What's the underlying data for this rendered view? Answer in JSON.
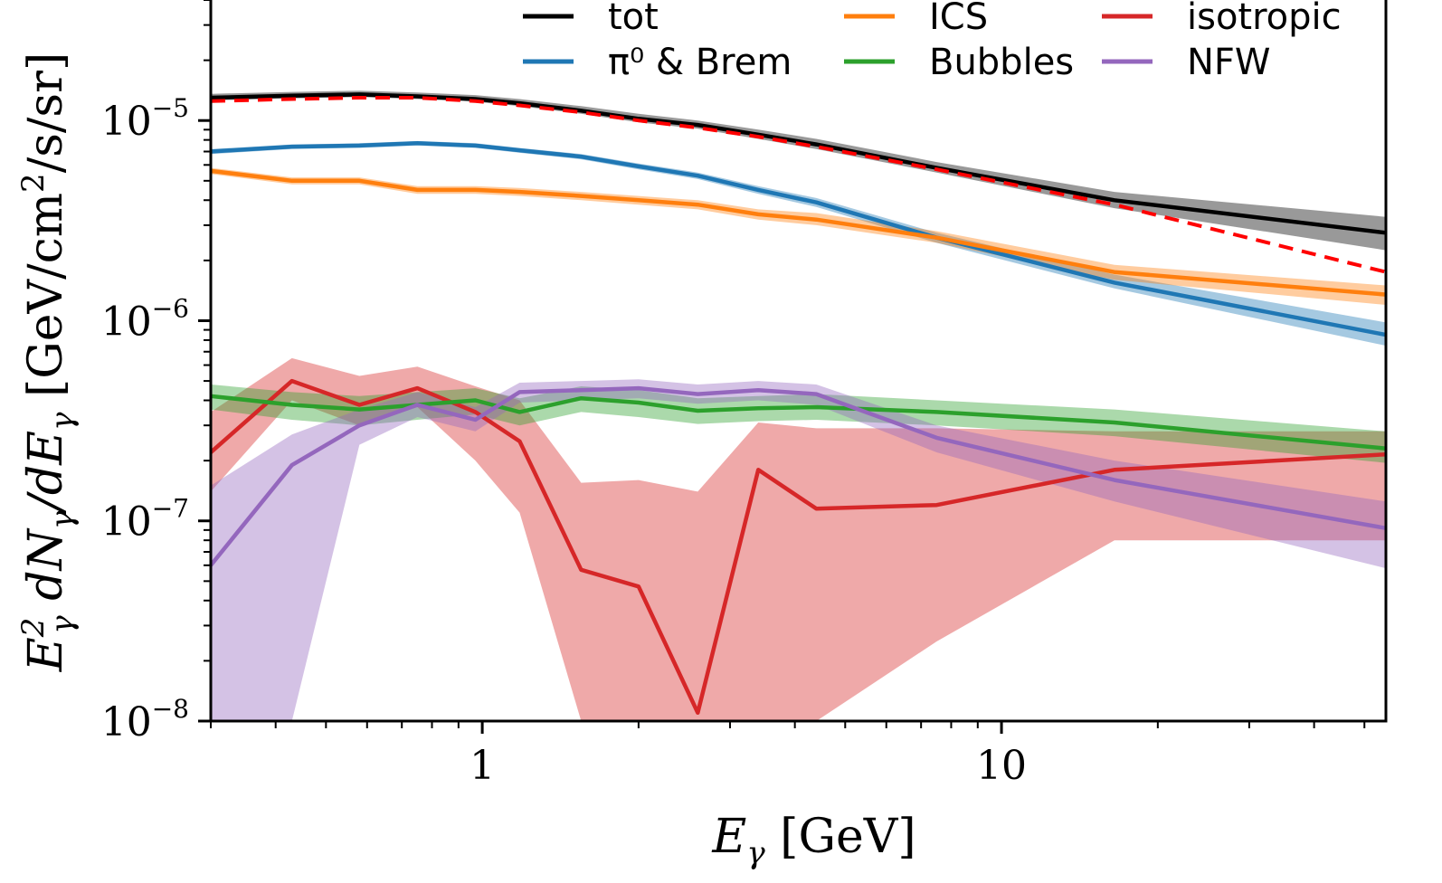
{
  "chart_data": {
    "type": "line",
    "xscale": "log",
    "yscale": "log",
    "xlim": [
      0.3,
      55
    ],
    "ylim": [
      1e-08,
      4e-05
    ],
    "xlabel": "E_γ  [GeV]",
    "ylabel": "E_γ² dN_γ/dE_γ  [GeV/cm²/s/sr]",
    "xticks": [
      {
        "value": 1,
        "label": "1"
      },
      {
        "value": 10,
        "label": "10"
      }
    ],
    "yticks": [
      {
        "value": 1e-08,
        "base": "10",
        "exp": "−8"
      },
      {
        "value": 1e-07,
        "base": "10",
        "exp": "−7"
      },
      {
        "value": 1e-06,
        "base": "10",
        "exp": "−6"
      },
      {
        "value": 1e-05,
        "base": "10",
        "exp": "−5"
      }
    ],
    "legend_position": "top",
    "grid": false,
    "x": [
      0.3,
      0.43,
      0.58,
      0.75,
      0.97,
      1.18,
      1.55,
      2.0,
      2.6,
      3.4,
      4.4,
      7.5,
      16.5,
      55
    ],
    "series": [
      {
        "name": "tot",
        "color": "#000000",
        "dash": false,
        "values": [
          1.3e-05,
          1.33e-05,
          1.35e-05,
          1.32e-05,
          1.28e-05,
          1.22e-05,
          1.12e-05,
          1.02e-05,
          9.5e-06,
          8.5e-06,
          7.6e-06,
          5.8e-06,
          4e-06,
          2.75e-06
        ],
        "band_low": [
          1.26e-05,
          1.29e-05,
          1.31e-05,
          1.28e-05,
          1.24e-05,
          1.18e-05,
          1.08e-05,
          9.8e-06,
          9.1e-06,
          8.1e-06,
          7.2e-06,
          5.5e-06,
          3.65e-06,
          2.25e-06
        ],
        "band_high": [
          1.36e-05,
          1.39e-05,
          1.41e-05,
          1.38e-05,
          1.34e-05,
          1.28e-05,
          1.18e-05,
          1.08e-05,
          1e-05,
          9e-06,
          8.1e-06,
          6.2e-06,
          4.4e-06,
          3.3e-06
        ]
      },
      {
        "name": "π⁰ & Brem",
        "color": "#1f77b4",
        "dash": false,
        "values": [
          7e-06,
          7.4e-06,
          7.5e-06,
          7.7e-06,
          7.5e-06,
          7.1e-06,
          6.6e-06,
          5.9e-06,
          5.3e-06,
          4.5e-06,
          3.9e-06,
          2.6e-06,
          1.55e-06,
          8.5e-07
        ],
        "band_low": [
          6.8e-06,
          7.2e-06,
          7.3e-06,
          7.5e-06,
          7.3e-06,
          6.9e-06,
          6.4e-06,
          5.7e-06,
          5.1e-06,
          4.3e-06,
          3.7e-06,
          2.45e-06,
          1.45e-06,
          7.5e-07
        ],
        "band_high": [
          7.2e-06,
          7.6e-06,
          7.7e-06,
          7.9e-06,
          7.7e-06,
          7.3e-06,
          6.8e-06,
          6.1e-06,
          5.5e-06,
          4.7e-06,
          4.1e-06,
          2.75e-06,
          1.7e-06,
          9.8e-07
        ]
      },
      {
        "name": "ICS",
        "color": "#ff7f0e",
        "dash": false,
        "values": [
          5.6e-06,
          5e-06,
          5e-06,
          4.5e-06,
          4.5e-06,
          4.4e-06,
          4.2e-06,
          4e-06,
          3.8e-06,
          3.4e-06,
          3.2e-06,
          2.6e-06,
          1.75e-06,
          1.35e-06
        ],
        "band_low": [
          5.4e-06,
          4.8e-06,
          4.8e-06,
          4.3e-06,
          4.3e-06,
          4.2e-06,
          4e-06,
          3.8e-06,
          3.6e-06,
          3.2e-06,
          3e-06,
          2.45e-06,
          1.6e-06,
          1.2e-06
        ],
        "band_high": [
          5.8e-06,
          5.2e-06,
          5.2e-06,
          4.7e-06,
          4.7e-06,
          4.6e-06,
          4.4e-06,
          4.2e-06,
          4e-06,
          3.6e-06,
          3.45e-06,
          2.8e-06,
          1.9e-06,
          1.5e-06
        ]
      },
      {
        "name": "isotropic",
        "color": "#d62728",
        "dash": false,
        "values": [
          2.2e-07,
          5e-07,
          3.8e-07,
          4.6e-07,
          3.5e-07,
          2.5e-07,
          5.7e-08,
          4.7e-08,
          1.1e-08,
          1.8e-07,
          1.15e-07,
          1.2e-07,
          1.8e-07,
          2.15e-07
        ],
        "band_low": [
          1.4e-07,
          4e-07,
          3e-07,
          3.7e-07,
          2e-07,
          1.1e-07,
          1e-08,
          1e-08,
          1e-08,
          1e-08,
          1e-08,
          2.5e-08,
          8e-08,
          8e-08
        ],
        "band_high": [
          3.5e-07,
          6.5e-07,
          5.3e-07,
          5.9e-07,
          4.7e-07,
          4e-07,
          1.55e-07,
          1.6e-07,
          1.4e-07,
          3.1e-07,
          2.9e-07,
          2.9e-07,
          2.8e-07,
          2.8e-07
        ]
      },
      {
        "name": "Bubbles",
        "color": "#2ca02c",
        "dash": false,
        "values": [
          4.2e-07,
          3.8e-07,
          3.6e-07,
          3.8e-07,
          4e-07,
          3.5e-07,
          4.1e-07,
          3.9e-07,
          3.55e-07,
          3.65e-07,
          3.7e-07,
          3.5e-07,
          3.1e-07,
          2.3e-07
        ],
        "band_low": [
          3.6e-07,
          3.2e-07,
          3e-07,
          3.2e-07,
          3.4e-07,
          3e-07,
          3.5e-07,
          3.3e-07,
          3.05e-07,
          3.15e-07,
          3.2e-07,
          3e-07,
          2.65e-07,
          1.95e-07
        ],
        "band_high": [
          4.8e-07,
          4.4e-07,
          4.2e-07,
          4.4e-07,
          4.6e-07,
          4.1e-07,
          4.7e-07,
          4.5e-07,
          4.1e-07,
          4.2e-07,
          4.3e-07,
          4e-07,
          3.6e-07,
          2.8e-07
        ]
      },
      {
        "name": "NFW",
        "color": "#9467bd",
        "dash": false,
        "values": [
          6e-08,
          1.9e-07,
          3e-07,
          3.8e-07,
          3.2e-07,
          4.4e-07,
          4.5e-07,
          4.6e-07,
          4.3e-07,
          4.5e-07,
          4.3e-07,
          2.6e-07,
          1.6e-07,
          9.2e-08
        ],
        "band_low": [
          1e-08,
          1e-08,
          2.4e-07,
          3.3e-07,
          2.8e-07,
          3.9e-07,
          4e-07,
          4.1e-07,
          3.85e-07,
          4e-07,
          3.8e-07,
          2.2e-07,
          1.25e-07,
          5.8e-08
        ],
        "band_high": [
          1.5e-07,
          2.7e-07,
          3.6e-07,
          4.4e-07,
          3.7e-07,
          4.9e-07,
          5e-07,
          5.1e-07,
          4.8e-07,
          5e-07,
          4.8e-07,
          3e-07,
          2e-07,
          1.25e-07
        ]
      },
      {
        "name": "",
        "color": "#ff0000",
        "dash": true,
        "legend": false,
        "values": [
          1.25e-05,
          1.28e-05,
          1.3e-05,
          1.3e-05,
          1.25e-05,
          1.19e-05,
          1.1e-05,
          1e-05,
          9.2e-06,
          8.3e-06,
          7.4e-06,
          5.7e-06,
          3.8e-06,
          1.75e-06
        ]
      }
    ]
  }
}
